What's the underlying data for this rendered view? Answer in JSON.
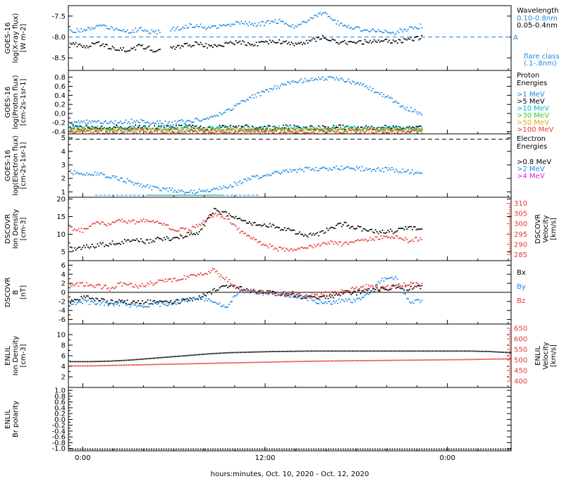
{
  "chart_data": {
    "type": "line",
    "xlabel": "hours:minutes, Oct. 10, 2020 - Oct. 12, 2020",
    "x_ticks": [
      "0:00",
      "12:00",
      "0:00"
    ],
    "panels": [
      {
        "id": "xray",
        "ylabel_lines": [
          "GOES-16",
          "log(X-ray flux)",
          "[W m-2]"
        ],
        "y_ticks": [
          -7.5,
          -8.0,
          -8.5
        ],
        "ylim": [
          -8.8,
          -7.25
        ],
        "reference_level": -8.0,
        "reference_label": "A",
        "legend_title": [
          "Wavelength"
        ],
        "series": [
          {
            "name": "0.10-0.8nm",
            "color": "#1e88e5",
            "values": [
              -7.85,
              -7.8,
              -7.72,
              -7.78,
              -7.85,
              -7.8,
              -7.88,
              -7.82,
              -7.75,
              -7.7,
              -7.78,
              -7.72,
              -7.62,
              -7.7,
              -7.65,
              -7.6,
              -7.75,
              -7.58,
              -7.4,
              -7.65,
              -7.75,
              -7.82,
              -7.85,
              -7.88,
              -7.8,
              -7.72
            ]
          },
          {
            "name": "0.05-0.4nm",
            "color": "#000000",
            "values": [
              -8.15,
              -8.2,
              -8.15,
              -8.25,
              -8.3,
              -8.2,
              -8.3,
              -8.25,
              -8.2,
              -8.15,
              -8.22,
              -8.18,
              -8.1,
              -8.18,
              -8.12,
              -8.1,
              -8.15,
              -8.08,
              -8.0,
              -8.1,
              -8.12,
              -8.1,
              -8.08,
              -8.1,
              -8.05,
              -8.0
            ]
          }
        ],
        "extra_legend": [
          "flare class",
          "(.1-.8nm)"
        ],
        "extra_legend_color": "#1e88e5"
      },
      {
        "id": "proton",
        "ylabel_lines": [
          "GOES-16",
          "log(Proton flux)",
          "[cm-2s-1sr-1]"
        ],
        "y_ticks": [
          0.8,
          0.6,
          0.4,
          0.2,
          0.0,
          -0.2,
          -0.4
        ],
        "ylim": [
          -0.45,
          0.95
        ],
        "legend_title": [
          "Proton",
          "Energies"
        ],
        "series": [
          {
            "name": ">1 MeV",
            "color": "#1e88e5",
            "values": [
              -0.2,
              -0.15,
              -0.2,
              -0.18,
              -0.15,
              -0.2,
              -0.2,
              -0.15,
              -0.1,
              0.0,
              0.2,
              0.4,
              0.55,
              0.68,
              0.75,
              0.8,
              0.78,
              0.7,
              0.55,
              0.35,
              0.15,
              0.0
            ]
          },
          {
            "name": ">5 MeV",
            "color": "#000000",
            "values": [
              -0.3,
              -0.28,
              -0.3,
              -0.3,
              -0.28,
              -0.3,
              -0.3,
              -0.28,
              -0.3,
              -0.3,
              -0.28,
              -0.3,
              -0.3,
              -0.28,
              -0.3,
              -0.3,
              -0.28,
              -0.3,
              -0.3,
              -0.28,
              -0.3,
              -0.3
            ]
          },
          {
            "name": ">10 MeV",
            "color": "#00b8c8",
            "values": [
              -0.32,
              -0.3,
              -0.32,
              -0.32,
              -0.3,
              -0.32,
              -0.32,
              -0.3,
              -0.32,
              -0.32,
              -0.3,
              -0.32,
              -0.32,
              -0.3,
              -0.32,
              -0.32,
              -0.3,
              -0.32,
              -0.32,
              -0.3,
              -0.32,
              -0.32
            ]
          },
          {
            "name": ">30 MeV",
            "color": "#33cc33",
            "values": [
              -0.35,
              -0.34,
              -0.35,
              -0.35,
              -0.34,
              -0.35,
              -0.35,
              -0.34,
              -0.35,
              -0.35,
              -0.34,
              -0.35,
              -0.35,
              -0.34,
              -0.35,
              -0.35,
              -0.34,
              -0.35,
              -0.35,
              -0.34,
              -0.35,
              -0.35
            ]
          },
          {
            "name": ">50 MeV",
            "color": "#e6a800",
            "values": [
              -0.36,
              -0.36,
              -0.37,
              -0.36,
              -0.36,
              -0.37,
              -0.36,
              -0.36,
              -0.37,
              -0.36,
              -0.36,
              -0.37,
              -0.36,
              -0.36,
              -0.37,
              -0.36,
              -0.36,
              -0.37,
              -0.36,
              -0.36,
              -0.37,
              -0.36
            ]
          },
          {
            "name": ">100 MeV",
            "color": "#e53935",
            "values": [
              -0.38,
              -0.38,
              -0.39,
              -0.38,
              -0.38,
              -0.39,
              -0.38,
              -0.38,
              -0.39,
              -0.38,
              -0.38,
              -0.39,
              -0.38,
              -0.38,
              -0.39,
              -0.38,
              -0.38,
              -0.39,
              -0.38,
              -0.38,
              -0.39,
              -0.38
            ]
          }
        ]
      },
      {
        "id": "electron",
        "ylabel_lines": [
          "GOES-16",
          "log(Electron flux)",
          "[cm-2s-1sr-1]"
        ],
        "y_ticks": [
          5,
          4,
          3,
          2,
          1
        ],
        "ylim": [
          0.6,
          5.3
        ],
        "reference_level": 4.9,
        "legend_title": [
          "Electron",
          "Energies"
        ],
        "series": [
          {
            "name": ">0.8 MeV",
            "color": "#000000",
            "values": []
          },
          {
            "name": ">2 MeV",
            "color": "#1e88e5",
            "values": [
              2.5,
              2.4,
              2.3,
              2.0,
              1.6,
              1.3,
              1.2,
              1.0,
              1.1,
              1.3,
              1.7,
              2.1,
              2.4,
              2.6,
              2.7,
              2.8,
              2.8,
              2.8,
              2.7,
              2.7,
              2.6,
              2.4
            ]
          },
          {
            "name": ">4 MeV",
            "color": "#e020e0",
            "values": []
          }
        ]
      },
      {
        "id": "dscovr_density",
        "ylabel_lines": [
          "DSCOVR",
          "Ion Density",
          "[cm-3]"
        ],
        "y_ticks": [
          20,
          15,
          10,
          5
        ],
        "ylim": [
          2.5,
          20.5
        ],
        "right_axis_ticks": [
          310,
          305,
          300,
          295,
          290,
          285
        ],
        "right_ylim": [
          282,
          313
        ],
        "right_label_lines": [
          "DSCOVR",
          "Velocity",
          "[km/s]"
        ],
        "series": [
          {
            "name": "Ion Density",
            "color": "#000000",
            "values": [
              6,
              6.5,
              7,
              7.5,
              8,
              8.5,
              8,
              9,
              9,
              10,
              11,
              17,
              16,
              15,
              13,
              13,
              12,
              11,
              10,
              10,
              12,
              13,
              12,
              11,
              11,
              11,
              12,
              12
            ]
          },
          {
            "name": "Velocity",
            "color": "#e53935",
            "axis": "right",
            "values": [
              298,
              297,
              301,
              300,
              302,
              301,
              302,
              300,
              298,
              297,
              300,
              305,
              303,
              297,
              293,
              290,
              288,
              287,
              289,
              290,
              291,
              290,
              292,
              293,
              294,
              294,
              292,
              293
            ]
          }
        ]
      },
      {
        "id": "dscovr_b",
        "ylabel_lines": [
          "DSCOVR",
          "B",
          "[nT]"
        ],
        "y_ticks": [
          6,
          4,
          2,
          0,
          -2,
          -4,
          -6
        ],
        "ylim": [
          -7,
          7
        ],
        "legend_title": [],
        "series": [
          {
            "name": "Bx",
            "color": "#000000",
            "values": [
              -2,
              -1,
              -1.5,
              -2,
              -2,
              -2.2,
              -2,
              -1.8,
              -2,
              -1.5,
              -1,
              0.5,
              1.5,
              1,
              0.5,
              0,
              0,
              -0.5,
              -0.8,
              -1,
              -0.8,
              0,
              0,
              0.5,
              1,
              1.2,
              1,
              1.5
            ]
          },
          {
            "name": "By",
            "color": "#1e88e5",
            "values": [
              -2.5,
              -2,
              -2.2,
              -2.5,
              -2.5,
              -2.8,
              -2.8,
              -2.5,
              -2.2,
              -1.5,
              -1,
              -2,
              -3,
              0.5,
              0.2,
              0,
              -0.2,
              -0.5,
              -1,
              -2,
              -2.2,
              -1.5,
              -1.8,
              0,
              3,
              3.5,
              -2,
              -1.8
            ]
          },
          {
            "name": "Bz",
            "color": "#e53935",
            "values": [
              1.5,
              2,
              1.5,
              1,
              2,
              1.5,
              2,
              2.5,
              3,
              3.5,
              4,
              5,
              3,
              0.5,
              0.5,
              0,
              0,
              0,
              -0.5,
              -0.5,
              0,
              0.5,
              1,
              1.5,
              1,
              1.5,
              2,
              2
            ]
          }
        ],
        "legend_labels": [
          "Bx",
          "By",
          "Bz"
        ]
      },
      {
        "id": "enlil_density",
        "ylabel_lines": [
          "ENLIL",
          "Ion Density",
          "[cm-3]"
        ],
        "y_ticks": [
          10,
          8,
          6,
          4,
          2
        ],
        "ylim": [
          0,
          12
        ],
        "right_axis_ticks": [
          650,
          600,
          550,
          500,
          450,
          400
        ],
        "right_ylim": [
          370,
          670
        ],
        "right_label_lines": [
          "ENLIL",
          "Velocity",
          "[km/s]"
        ],
        "series": [
          {
            "name": "Ion Density",
            "color": "#000000",
            "values": [
              5.0,
              5.0,
              5.1,
              5.3,
              5.6,
              5.9,
              6.2,
              6.5,
              6.7,
              6.8,
              6.9,
              6.95,
              7.0,
              7.0,
              7.0,
              7.0,
              7.0,
              7.0,
              7.0,
              7.0,
              7.0,
              6.9,
              6.7
            ]
          },
          {
            "name": "Velocity",
            "color": "#e53935",
            "axis": "right",
            "values": [
              475,
              475,
              477,
              479,
              481,
              483,
              485,
              487,
              489,
              491,
              493,
              495,
              497,
              498,
              499,
              500,
              501,
              502,
              503,
              504,
              505,
              507,
              508
            ]
          }
        ]
      },
      {
        "id": "enlil_polarity",
        "ylabel_lines": [
          "ENLIL",
          "Br polarity"
        ],
        "y_ticks": [
          1.0,
          0.8,
          0.6,
          0.4,
          0.2,
          0.0,
          -0.2,
          -0.4,
          -0.6,
          -0.8,
          -1.0
        ],
        "ylim": [
          -1.08,
          1.1
        ],
        "series": [
          {
            "name": "Br polarity",
            "color": "#000000",
            "values": [
              -1,
              -1,
              -1,
              -1,
              -1,
              -1,
              -1,
              -1,
              -1,
              -1,
              -1,
              -1,
              -1,
              -1,
              -1,
              -1,
              -1,
              -1,
              -1,
              -1,
              -1,
              -1,
              -1,
              -1
            ]
          }
        ]
      }
    ]
  }
}
